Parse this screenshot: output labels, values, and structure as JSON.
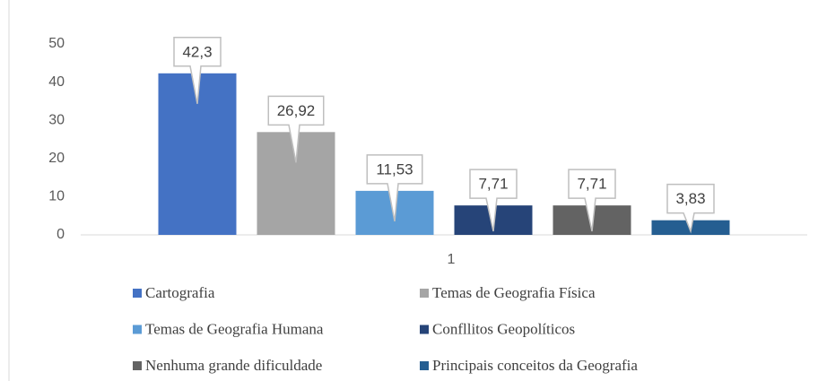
{
  "chart_data": {
    "type": "bar",
    "categories": [
      "1"
    ],
    "series": [
      {
        "name": "Cartografia",
        "color": "#4472c4",
        "values": [
          42.3
        ],
        "value_labels": [
          "42,3"
        ]
      },
      {
        "name": "Temas de Geografia Física",
        "color": "#a5a5a5",
        "values": [
          26.92
        ],
        "value_labels": [
          "26,92"
        ]
      },
      {
        "name": "Temas de Geografia Humana",
        "color": "#5b9bd5",
        "values": [
          11.53
        ],
        "value_labels": [
          "11,53"
        ]
      },
      {
        "name": "Confllitos Geopolíticos",
        "color": "#264478",
        "values": [
          7.71
        ],
        "value_labels": [
          "7,71"
        ]
      },
      {
        "name": "Nenhuma grande dificuldade",
        "color": "#636363",
        "values": [
          7.71
        ],
        "value_labels": [
          "7,71"
        ]
      },
      {
        "name": "Principais conceitos da Geografia",
        "color": "#255e91",
        "values": [
          3.83
        ],
        "value_labels": [
          "3,83"
        ]
      }
    ],
    "ylim": [
      0,
      50
    ],
    "yticks": [
      0,
      10,
      20,
      30,
      40,
      50
    ],
    "grid": false,
    "legend": "bottom"
  }
}
